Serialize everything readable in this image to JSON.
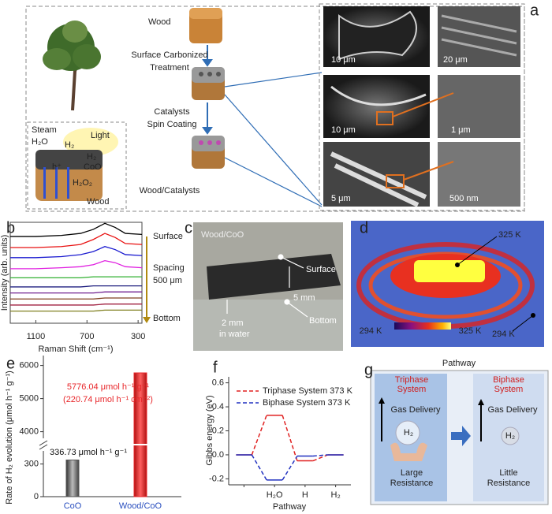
{
  "panels": {
    "a": {
      "label": "a",
      "steps": [
        "Wood",
        "Surface Carbonized",
        "Treatment",
        "Catalysts",
        "Spin Coating",
        "Wood/Catalysts"
      ],
      "inset": [
        "Steam",
        "H₂O",
        "Light",
        "H₂",
        "h⁺",
        "H₂",
        "CoO",
        "H₂O₂",
        "Wood"
      ],
      "scale_bars": [
        "10 μm",
        "20 μm",
        "10 μm",
        "1 μm",
        "5 μm",
        "500 nm"
      ]
    },
    "c": {
      "label": "c",
      "title": "Wood/CoO",
      "notes": [
        "Surface",
        "5 mm",
        "2 mm",
        "in water",
        "Bottom"
      ]
    },
    "d": {
      "label": "d",
      "notes": [
        "325 K",
        "294 K"
      ],
      "colorbar": [
        "294 K",
        "325 K"
      ]
    },
    "g": {
      "label": "g",
      "title": "Pathway",
      "left": {
        "name": [
          "Triphase",
          "System"
        ],
        "arrow": "Gas Delivery",
        "bubble": "H₂",
        "foot": [
          "Large",
          "Resistance"
        ]
      },
      "right": {
        "name": [
          "Biphase",
          "System"
        ],
        "arrow": "Gas Delivery",
        "bubble": "H₂",
        "foot": [
          "Little",
          "Resistance"
        ]
      }
    }
  },
  "chart_data": [
    {
      "label": "b",
      "type": "line",
      "xlabel": "Raman Shift  (cm⁻¹)",
      "ylabel": "Intensity (arb. units)",
      "annotations": [
        "Surface",
        "Spacing",
        "500 μm",
        "Bottom"
      ],
      "x": [
        1300,
        1100,
        900,
        750,
        650,
        560,
        480,
        400,
        270
      ],
      "xlim": [
        1300,
        270
      ],
      "xticks": [
        1100,
        700,
        300
      ],
      "ylim": [
        0,
        10
      ],
      "series": [
        {
          "color": "#000000",
          "values": [
            8.6,
            8.6,
            8.7,
            8.9,
            9.3,
            9.9,
            9.5,
            8.9,
            8.8
          ]
        },
        {
          "color": "#e81010",
          "values": [
            7.5,
            7.5,
            7.6,
            7.8,
            8.3,
            8.9,
            8.5,
            7.9,
            7.8
          ]
        },
        {
          "color": "#1a1ad0",
          "values": [
            6.5,
            6.5,
            6.6,
            6.8,
            7.1,
            7.6,
            7.3,
            6.8,
            6.7
          ]
        },
        {
          "color": "#e020e0",
          "values": [
            5.4,
            5.4,
            5.5,
            5.6,
            5.8,
            6.2,
            6.0,
            5.6,
            5.5
          ]
        },
        {
          "color": "#30b030",
          "values": [
            4.5,
            4.5,
            4.5,
            4.5,
            4.6,
            4.6,
            4.6,
            4.6,
            4.6
          ]
        },
        {
          "color": "#202080",
          "values": [
            3.6,
            3.6,
            3.6,
            3.6,
            3.7,
            3.7,
            3.7,
            3.7,
            3.7
          ]
        },
        {
          "color": "#702090",
          "values": [
            3.0,
            3.0,
            3.0,
            3.0,
            3.0,
            3.1,
            3.1,
            3.1,
            3.1
          ]
        },
        {
          "color": "#804020",
          "values": [
            2.4,
            2.4,
            2.4,
            2.4,
            2.4,
            2.5,
            2.5,
            2.5,
            2.5
          ]
        },
        {
          "color": "#a02040",
          "values": [
            1.8,
            1.8,
            1.8,
            1.8,
            1.8,
            1.9,
            1.9,
            1.9,
            1.9
          ]
        },
        {
          "color": "#808020",
          "values": [
            1.2,
            1.2,
            1.2,
            1.2,
            1.2,
            1.3,
            1.3,
            1.3,
            1.3
          ]
        }
      ]
    },
    {
      "label": "e",
      "type": "bar",
      "categories": [
        "CoO",
        "Wood/CoO"
      ],
      "values": [
        336.73,
        5776.04
      ],
      "value_labels": [
        "336.73 μmol h⁻¹ g⁻¹",
        "5776.04 μmol h⁻¹ g⁻¹"
      ],
      "annotation": "(220.74 μmol h⁻¹ cm⁻²)",
      "colors": [
        "#555555",
        "#e8262a"
      ],
      "label_colors": [
        "#111111",
        "#e8262a"
      ],
      "category_color": "#2a4fbf",
      "ylabel": "Rate of H₂ evolution (μmol h⁻¹ g⁻¹)",
      "ylim": [
        0,
        6300
      ],
      "ybreak": [
        420,
        3800
      ],
      "yticks": [
        0,
        300,
        4000,
        5000,
        6000
      ]
    },
    {
      "label": "f",
      "type": "line",
      "categories": [
        null,
        "H₂O",
        "H",
        "H₂"
      ],
      "xlabel": "Pathway",
      "ylabel": "Gibbs energy (eV)",
      "ylim": [
        -0.25,
        0.65
      ],
      "yticks": [
        -0.2,
        {
          "value": 0,
          "label": "0.0"
        },
        0.2,
        0.4,
        0.6
      ],
      "series": [
        {
          "name": "Triphase System 373 K",
          "color": "#e02020",
          "values": [
            0,
            0.33,
            -0.05,
            0
          ]
        },
        {
          "name": "Biphase System 373 K",
          "color": "#2030c0",
          "values": [
            0,
            -0.21,
            -0.01,
            0
          ]
        }
      ]
    }
  ]
}
